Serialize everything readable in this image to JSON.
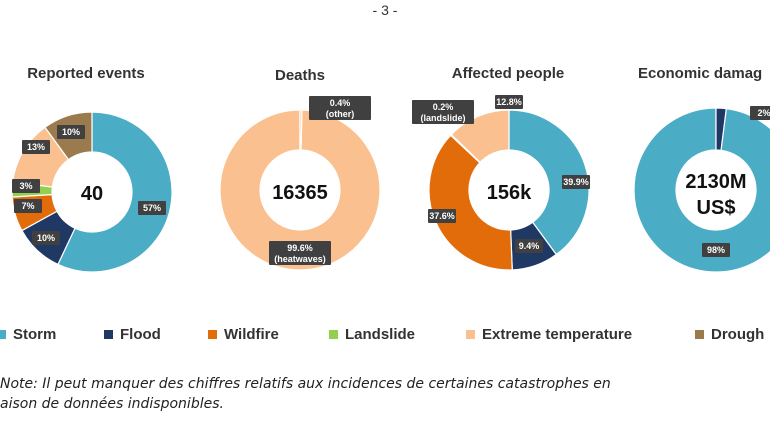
{
  "page_number": "- 3 -",
  "colors": {
    "Storm": "#4BACC6",
    "Flood": "#1F3864",
    "Wildfire": "#E36C0A",
    "Landslide": "#92D050",
    "Extreme temperature": "#FAC08F",
    "Drought": "#9B7B4E"
  },
  "legend": [
    "Storm",
    "Flood",
    "Wildfire",
    "Landslide",
    "Extreme temperature",
    "Drough"
  ],
  "note": {
    "line1": "Note: Il peut manquer des chiffres relatifs aux incidences de certaines catastrophes en",
    "line2": "aison de données indisponibles."
  },
  "chart_data": [
    {
      "type": "pie",
      "title": "Reported events",
      "center_label": "40",
      "slices": [
        {
          "category": "Storm",
          "value": 57,
          "label": "57%"
        },
        {
          "category": "Flood",
          "value": 10,
          "label": "10%"
        },
        {
          "category": "Wildfire",
          "value": 7,
          "label": "7%"
        },
        {
          "category": "Landslide",
          "value": 3,
          "label": "3%"
        },
        {
          "category": "Extreme temperature",
          "value": 13,
          "label": "13%"
        },
        {
          "category": "Drought",
          "value": 10,
          "label": "10%"
        }
      ]
    },
    {
      "type": "pie",
      "title": "Deaths",
      "center_label": "16365",
      "slices": [
        {
          "category": "Extreme temperature",
          "value": 99.6,
          "label": "99.6%",
          "sublabel": "(heatwaves)"
        },
        {
          "category": "Other",
          "value": 0.4,
          "label": "0.4%",
          "sublabel": "(other)"
        }
      ]
    },
    {
      "type": "pie",
      "title": "Affected people",
      "center_label": "156k",
      "slices": [
        {
          "category": "Storm",
          "value": 39.9,
          "label": "39.9%"
        },
        {
          "category": "Flood",
          "value": 9.4,
          "label": "9.4%"
        },
        {
          "category": "Wildfire",
          "value": 37.6,
          "label": "37.6%"
        },
        {
          "category": "Landslide",
          "value": 0.2,
          "label": "0.2%",
          "sublabel": "(landslide)"
        },
        {
          "category": "Extreme temperature",
          "value": 12.8,
          "label": "12.8%"
        }
      ]
    },
    {
      "type": "pie",
      "title": "Economic damag",
      "center_label": "2130M",
      "center_label_2": "US$",
      "slices": [
        {
          "category": "Storm",
          "value": 98,
          "label": "98%"
        },
        {
          "category": "Flood",
          "value": 2,
          "label": "2%"
        }
      ]
    }
  ]
}
